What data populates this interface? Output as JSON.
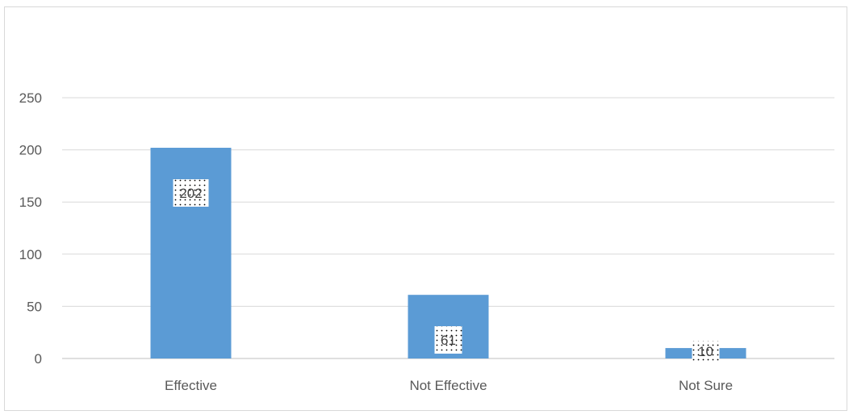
{
  "chart_data": {
    "type": "bar",
    "title": "",
    "xlabel": "",
    "ylabel": "",
    "categories": [
      "Effective",
      "Not Effective",
      "Not Sure"
    ],
    "values": [
      202,
      61,
      10
    ],
    "data_labels": [
      "202",
      "61",
      "10"
    ],
    "ylim": [
      0,
      250
    ],
    "yticks": [
      0,
      50,
      100,
      150,
      200,
      250
    ],
    "ytick_labels": [
      "0",
      "50",
      "100",
      "150",
      "200",
      "250"
    ],
    "grid": true,
    "legend": "none",
    "bar_color": "#5b9bd5",
    "grid_color": "#d9d9d9"
  }
}
